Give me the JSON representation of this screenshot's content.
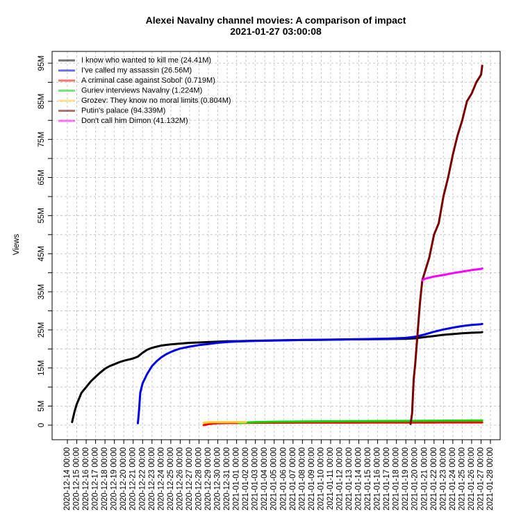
{
  "chart_data": {
    "type": "line",
    "title": "Alexei Navalny channel movies: A comparison of impact",
    "subtitle": "2021-01-27 03:00:08",
    "xlabel": "",
    "ylabel": "Views",
    "xlim": [
      "2020-12-14 00:00",
      "2021-01-28 00:00"
    ],
    "ylim": [
      0,
      100
    ],
    "y_unit_suffix": "M",
    "y_tick_labels": [
      "0",
      "5M",
      "15M",
      "25M",
      "35M",
      "45M",
      "55M",
      "65M",
      "75M",
      "85M",
      "95M"
    ],
    "y_tick_values": [
      0,
      5,
      15,
      25,
      35,
      45,
      55,
      65,
      75,
      85,
      95
    ],
    "x_tick_labels": [
      "2020-12-14 00:00",
      "2020-12-15 00:00",
      "2020-12-16 00:00",
      "2020-12-17 00:00",
      "2020-12-18 00:00",
      "2020-12-19 00:00",
      "2020-12-20 00:00",
      "2020-12-21 00:00",
      "2020-12-22 00:00",
      "2020-12-23 00:00",
      "2020-12-24 00:00",
      "2020-12-25 00:00",
      "2020-12-26 00:00",
      "2020-12-27 00:00",
      "2020-12-28 00:00",
      "2020-12-29 00:00",
      "2020-12-30 00:00",
      "2020-12-31 00:00",
      "2021-01-01 00:00",
      "2021-01-02 00:00",
      "2021-01-03 00:00",
      "2021-01-04 00:00",
      "2021-01-05 00:00",
      "2021-01-06 00:00",
      "2021-01-07 00:00",
      "2021-01-08 00:00",
      "2021-01-09 00:00",
      "2021-01-10 00:00",
      "2021-01-11 00:00",
      "2021-01-12 00:00",
      "2021-01-13 00:00",
      "2021-01-14 00:00",
      "2021-01-15 00:00",
      "2021-01-16 00:00",
      "2021-01-17 00:00",
      "2021-01-18 00:00",
      "2021-01-19 00:00",
      "2021-01-20 00:00",
      "2021-01-21 00:00",
      "2021-01-22 00:00",
      "2021-01-23 00:00",
      "2021-01-24 00:00",
      "2021-01-25 00:00",
      "2021-01-26 00:00",
      "2021-01-27 00:00",
      "2021-01-28 00:00"
    ],
    "grid": true,
    "legend_position": "top-left",
    "series": [
      {
        "name": "I know who wanted to kill me (24.41M)",
        "color": "#000000",
        "points": [
          [
            "2020-12-14 12:00",
            0.8
          ],
          [
            "2020-12-14 18:00",
            3.5
          ],
          [
            "2020-12-15 00:00",
            5.5
          ],
          [
            "2020-12-15 12:00",
            8.5
          ],
          [
            "2020-12-16 00:00",
            10.0
          ],
          [
            "2020-12-16 12:00",
            11.5
          ],
          [
            "2020-12-17 00:00",
            12.7
          ],
          [
            "2020-12-17 12:00",
            13.8
          ],
          [
            "2020-12-18 00:00",
            14.8
          ],
          [
            "2020-12-18 12:00",
            15.5
          ],
          [
            "2020-12-19 00:00",
            16.0
          ],
          [
            "2020-12-19 12:00",
            16.5
          ],
          [
            "2020-12-20 00:00",
            16.9
          ],
          [
            "2020-12-20 12:00",
            17.2
          ],
          [
            "2020-12-21 00:00",
            17.5
          ],
          [
            "2020-12-21 12:00",
            18.0
          ],
          [
            "2020-12-22 00:00",
            19.0
          ],
          [
            "2020-12-22 12:00",
            19.8
          ],
          [
            "2020-12-23 00:00",
            20.3
          ],
          [
            "2020-12-23 12:00",
            20.6
          ],
          [
            "2020-12-24 00:00",
            20.9
          ],
          [
            "2020-12-25 00:00",
            21.2
          ],
          [
            "2020-12-26 00:00",
            21.4
          ],
          [
            "2020-12-27 00:00",
            21.6
          ],
          [
            "2020-12-28 00:00",
            21.7
          ],
          [
            "2020-12-29 00:00",
            21.8
          ],
          [
            "2020-12-30 00:00",
            21.9
          ],
          [
            "2020-12-31 00:00",
            22.0
          ],
          [
            "2021-01-01 00:00",
            22.05
          ],
          [
            "2021-01-03 00:00",
            22.15
          ],
          [
            "2021-01-05 00:00",
            22.25
          ],
          [
            "2021-01-08 00:00",
            22.35
          ],
          [
            "2021-01-10 00:00",
            22.4
          ],
          [
            "2021-01-13 00:00",
            22.5
          ],
          [
            "2021-01-16 00:00",
            22.55
          ],
          [
            "2021-01-19 00:00",
            22.65
          ],
          [
            "2021-01-20 00:00",
            22.8
          ],
          [
            "2021-01-21 00:00",
            23.1
          ],
          [
            "2021-01-22 00:00",
            23.4
          ],
          [
            "2021-01-23 00:00",
            23.7
          ],
          [
            "2021-01-24 00:00",
            23.9
          ],
          [
            "2021-01-25 00:00",
            24.1
          ],
          [
            "2021-01-26 00:00",
            24.25
          ],
          [
            "2021-01-27 00:00",
            24.35
          ],
          [
            "2021-01-27 03:00",
            24.41
          ]
        ]
      },
      {
        "name": "I've called my assassin (26.56M)",
        "color": "#0000ee",
        "points": [
          [
            "2020-12-21 12:00",
            0.5
          ],
          [
            "2020-12-21 15:00",
            4.0
          ],
          [
            "2020-12-21 18:00",
            8.5
          ],
          [
            "2020-12-22 00:00",
            11.0
          ],
          [
            "2020-12-22 12:00",
            13.5
          ],
          [
            "2020-12-23 00:00",
            15.5
          ],
          [
            "2020-12-23 12:00",
            16.8
          ],
          [
            "2020-12-24 00:00",
            17.8
          ],
          [
            "2020-12-24 12:00",
            18.6
          ],
          [
            "2020-12-25 00:00",
            19.2
          ],
          [
            "2020-12-25 12:00",
            19.7
          ],
          [
            "2020-12-26 00:00",
            20.1
          ],
          [
            "2020-12-27 00:00",
            20.6
          ],
          [
            "2020-12-28 00:00",
            21.0
          ],
          [
            "2020-12-29 00:00",
            21.3
          ],
          [
            "2020-12-30 00:00",
            21.6
          ],
          [
            "2020-12-31 00:00",
            21.8
          ],
          [
            "2021-01-01 00:00",
            21.95
          ],
          [
            "2021-01-03 00:00",
            22.1
          ],
          [
            "2021-01-05 00:00",
            22.2
          ],
          [
            "2021-01-08 00:00",
            22.35
          ],
          [
            "2021-01-11 00:00",
            22.45
          ],
          [
            "2021-01-14 00:00",
            22.55
          ],
          [
            "2021-01-17 00:00",
            22.7
          ],
          [
            "2021-01-19 00:00",
            22.9
          ],
          [
            "2021-01-20 00:00",
            23.2
          ],
          [
            "2021-01-21 00:00",
            23.8
          ],
          [
            "2021-01-22 00:00",
            24.5
          ],
          [
            "2021-01-23 00:00",
            25.1
          ],
          [
            "2021-01-24 00:00",
            25.6
          ],
          [
            "2021-01-25 00:00",
            26.0
          ],
          [
            "2021-01-26 00:00",
            26.3
          ],
          [
            "2021-01-27 00:00",
            26.5
          ],
          [
            "2021-01-27 03:00",
            26.56
          ]
        ]
      },
      {
        "name": "A criminal case against Sobol' (0.719M)",
        "color": "#ff0000",
        "points": [
          [
            "2020-12-28 12:00",
            0.0
          ],
          [
            "2020-12-29 00:00",
            0.25
          ],
          [
            "2020-12-29 12:00",
            0.4
          ],
          [
            "2020-12-30 00:00",
            0.5
          ],
          [
            "2020-12-31 00:00",
            0.55
          ],
          [
            "2021-01-02 00:00",
            0.6
          ],
          [
            "2021-01-08 00:00",
            0.65
          ],
          [
            "2021-01-15 00:00",
            0.68
          ],
          [
            "2021-01-22 00:00",
            0.7
          ],
          [
            "2021-01-27 03:00",
            0.719
          ]
        ]
      },
      {
        "name": "Guriev interviews Navalny (1.224M)",
        "color": "#00dd00",
        "points": [
          [
            "2021-01-01 06:00",
            0.5
          ],
          [
            "2021-01-02 00:00",
            0.7
          ],
          [
            "2021-01-03 00:00",
            0.8
          ],
          [
            "2021-01-05 00:00",
            0.9
          ],
          [
            "2021-01-08 00:00",
            0.97
          ],
          [
            "2021-01-12 00:00",
            1.03
          ],
          [
            "2021-01-16 00:00",
            1.08
          ],
          [
            "2021-01-20 00:00",
            1.12
          ],
          [
            "2021-01-24 00:00",
            1.18
          ],
          [
            "2021-01-27 03:00",
            1.224
          ]
        ]
      },
      {
        "name": "Grozev: They know no moral limits (0.804M)",
        "color": "#ffcc33",
        "points": [
          [
            "2020-12-28 12:00",
            0.6
          ],
          [
            "2020-12-29 00:00",
            0.75
          ],
          [
            "2020-12-30 00:00",
            0.78
          ],
          [
            "2020-12-31 00:00",
            0.79
          ],
          [
            "2021-01-01 00:00",
            0.8
          ],
          [
            "2021-01-02 00:00",
            0.8
          ]
        ]
      },
      {
        "name": "Putin's palace (94.339M)",
        "color": "#7a0000",
        "points": [
          [
            "2021-01-19 12:00",
            0.3
          ],
          [
            "2021-01-19 16:00",
            3.0
          ],
          [
            "2021-01-19 20:00",
            12.0
          ],
          [
            "2021-01-20 00:00",
            16.0
          ],
          [
            "2021-01-20 06:00",
            24.0
          ],
          [
            "2021-01-20 12:00",
            32.0
          ],
          [
            "2021-01-20 18:00",
            38.0
          ],
          [
            "2021-01-21 00:00",
            40.0
          ],
          [
            "2021-01-21 12:00",
            44.0
          ],
          [
            "2021-01-22 00:00",
            50.0
          ],
          [
            "2021-01-22 12:00",
            53.0
          ],
          [
            "2021-01-23 00:00",
            60.0
          ],
          [
            "2021-01-23 12:00",
            65.0
          ],
          [
            "2021-01-24 00:00",
            71.0
          ],
          [
            "2021-01-24 12:00",
            76.0
          ],
          [
            "2021-01-25 00:00",
            80.0
          ],
          [
            "2021-01-25 12:00",
            85.0
          ],
          [
            "2021-01-26 00:00",
            87.0
          ],
          [
            "2021-01-26 12:00",
            90.0
          ],
          [
            "2021-01-27 00:00",
            92.0
          ],
          [
            "2021-01-27 03:00",
            94.339
          ]
        ]
      },
      {
        "name": "Don't call him Dimon (41.132M)",
        "color": "#ff00ff",
        "points": [
          [
            "2021-01-20 18:00",
            38.0
          ],
          [
            "2021-01-21 00:00",
            38.4
          ],
          [
            "2021-01-22 00:00",
            39.0
          ],
          [
            "2021-01-23 00:00",
            39.4
          ],
          [
            "2021-01-24 00:00",
            39.9
          ],
          [
            "2021-01-25 00:00",
            40.3
          ],
          [
            "2021-01-26 00:00",
            40.7
          ],
          [
            "2021-01-27 00:00",
            41.0
          ],
          [
            "2021-01-27 03:00",
            41.132
          ]
        ]
      }
    ]
  }
}
